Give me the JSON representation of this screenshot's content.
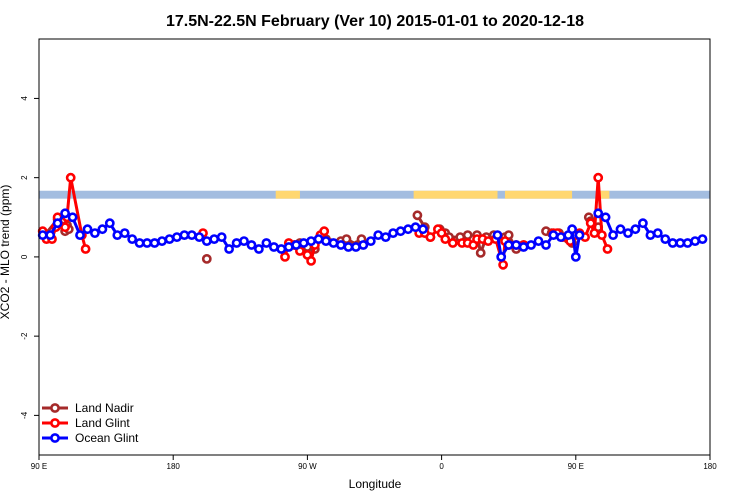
{
  "chart_data": {
    "type": "line",
    "title": "17.5N-22.5N February (Ver 10)   2015-01-01 to 2020-12-18",
    "xlabel": "Longitude",
    "ylabel": "XCO2 - MLO trend (ppm)",
    "xlim": [
      0,
      360
    ],
    "ylim": [
      -5,
      5.5
    ],
    "x_ticks": [
      {
        "value": 0,
        "label": "90 E"
      },
      {
        "value": 72,
        "label": "180"
      },
      {
        "value": 144,
        "label": "90 W"
      },
      {
        "value": 216,
        "label": "0"
      },
      {
        "value": 288,
        "label": "90 E"
      },
      {
        "value": 360,
        "label": "180"
      }
    ],
    "y_ticks": [
      {
        "value": -4,
        "label": "-4"
      },
      {
        "value": -2,
        "label": "-2"
      },
      {
        "value": 0,
        "label": "0"
      },
      {
        "value": 2,
        "label": "2"
      },
      {
        "value": 4,
        "label": "4"
      }
    ],
    "grid": false,
    "legend_position": "bottom-left",
    "land_strip": {
      "y_range": [
        1.47,
        1.67
      ],
      "ocean_color": "#a3bde0",
      "land_color": "#ffd770",
      "land_segments": [
        [
          127,
          140
        ],
        [
          201,
          246
        ],
        [
          250,
          286
        ],
        [
          301,
          306
        ]
      ]
    },
    "series": [
      {
        "name": "Land Nadir",
        "color": "#a52a2a",
        "segments": [
          [
            [
              3,
              0.55
            ],
            [
              10,
              0.95
            ],
            [
              14,
              0.65
            ],
            [
              15,
              0.8
            ],
            [
              16,
              0.7
            ]
          ],
          [
            [
              90,
              -0.05
            ]
          ],
          [
            [
              137,
              0.3
            ],
            [
              140,
              0.35
            ],
            [
              144,
              0.25
            ],
            [
              148,
              0.2
            ]
          ],
          [
            [
              154,
              0.45
            ],
            [
              162,
              0.4
            ],
            [
              165,
              0.45
            ],
            [
              171,
              0.3
            ],
            [
              173,
              0.45
            ]
          ],
          [
            [
              203,
              1.05
            ],
            [
              207,
              0.75
            ],
            [
              210,
              0.5
            ]
          ],
          [
            [
              215,
              0.7
            ],
            [
              218,
              0.6
            ],
            [
              220,
              0.5
            ],
            [
              226,
              0.5
            ],
            [
              230,
              0.55
            ]
          ],
          [
            [
              235,
              0.55
            ],
            [
              237,
              0.1
            ],
            [
              240,
              0.5
            ],
            [
              244,
              0.55
            ],
            [
              250,
              0.5
            ]
          ],
          [
            [
              252,
              0.55
            ],
            [
              256,
              0.2
            ],
            [
              260,
              0.3
            ]
          ],
          [
            [
              272,
              0.65
            ],
            [
              275,
              0.6
            ],
            [
              279,
              0.6
            ],
            [
              284,
              0.45
            ],
            [
              286,
              0.35
            ]
          ],
          [
            [
              295,
              1.0
            ],
            [
              296,
              0.9
            ],
            [
              300,
              0.75
            ]
          ]
        ]
      },
      {
        "name": "Land Glint",
        "color": "#ff0000",
        "segments": [
          [
            [
              2,
              0.65
            ],
            [
              4,
              0.45
            ],
            [
              7,
              0.45
            ],
            [
              9,
              0.75
            ],
            [
              10,
              1.0
            ],
            [
              14,
              0.75
            ],
            [
              15,
              1.0
            ],
            [
              17,
              2.0
            ],
            [
              23,
              0.55
            ],
            [
              25,
              0.2
            ]
          ],
          [
            [
              88,
              0.6
            ]
          ],
          [
            [
              132,
              0.0
            ],
            [
              134,
              0.35
            ],
            [
              137,
              0.3
            ],
            [
              140,
              0.15
            ],
            [
              144,
              0.05
            ],
            [
              146,
              -0.1
            ],
            [
              148,
              0.3
            ],
            [
              150,
              0.45
            ],
            [
              151,
              0.55
            ],
            [
              153,
              0.65
            ]
          ],
          [
            [
              204,
              0.6
            ],
            [
              207,
              0.6
            ],
            [
              210,
              0.5
            ],
            [
              214,
              0.7
            ],
            [
              216,
              0.6
            ],
            [
              218,
              0.45
            ],
            [
              222,
              0.35
            ],
            [
              227,
              0.35
            ],
            [
              230,
              0.35
            ],
            [
              233,
              0.3
            ],
            [
              235,
              0.45
            ],
            [
              238,
              0.45
            ],
            [
              241,
              0.4
            ],
            [
              245,
              0.45
            ],
            [
              249,
              -0.2
            ],
            [
              250,
              0.4
            ],
            [
              252,
              0.3
            ],
            [
              256,
              0.3
            ],
            [
              260,
              0.3
            ]
          ],
          [
            [
              276,
              0.6
            ],
            [
              278,
              0.6
            ],
            [
              281,
              0.5
            ],
            [
              285,
              0.4
            ],
            [
              288,
              0.55
            ],
            [
              290,
              0.6
            ],
            [
              293,
              0.5
            ],
            [
              296,
              0.85
            ],
            [
              298,
              0.6
            ],
            [
              300,
              2.0
            ],
            [
              302,
              0.55
            ],
            [
              305,
              0.2
            ]
          ]
        ]
      },
      {
        "name": "Ocean Glint",
        "color": "#0000ff",
        "segments": [
          [
            [
              2,
              0.55
            ],
            [
              6,
              0.55
            ],
            [
              10,
              0.85
            ],
            [
              14,
              1.1
            ],
            [
              18,
              1.0
            ],
            [
              22,
              0.55
            ],
            [
              26,
              0.7
            ],
            [
              30,
              0.6
            ],
            [
              34,
              0.7
            ],
            [
              38,
              0.85
            ],
            [
              42,
              0.55
            ],
            [
              46,
              0.6
            ],
            [
              50,
              0.45
            ],
            [
              54,
              0.35
            ],
            [
              58,
              0.35
            ],
            [
              62,
              0.35
            ],
            [
              66,
              0.4
            ],
            [
              70,
              0.45
            ],
            [
              74,
              0.5
            ],
            [
              78,
              0.55
            ],
            [
              82,
              0.55
            ],
            [
              86,
              0.5
            ],
            [
              90,
              0.4
            ],
            [
              94,
              0.45
            ],
            [
              98,
              0.5
            ],
            [
              102,
              0.2
            ],
            [
              106,
              0.35
            ],
            [
              110,
              0.4
            ],
            [
              114,
              0.3
            ],
            [
              118,
              0.2
            ],
            [
              122,
              0.35
            ],
            [
              126,
              0.25
            ],
            [
              130,
              0.2
            ],
            [
              134,
              0.25
            ],
            [
              138,
              0.3
            ],
            [
              142,
              0.35
            ],
            [
              146,
              0.4
            ],
            [
              150,
              0.45
            ],
            [
              154,
              0.4
            ],
            [
              158,
              0.35
            ],
            [
              162,
              0.3
            ],
            [
              166,
              0.25
            ],
            [
              170,
              0.25
            ],
            [
              174,
              0.3
            ],
            [
              178,
              0.4
            ],
            [
              182,
              0.55
            ],
            [
              186,
              0.5
            ],
            [
              190,
              0.6
            ],
            [
              194,
              0.65
            ],
            [
              198,
              0.7
            ],
            [
              202,
              0.75
            ],
            [
              206,
              0.7
            ]
          ],
          [
            [
              246,
              0.55
            ],
            [
              248,
              0.0
            ],
            [
              252,
              0.3
            ],
            [
              256,
              0.3
            ],
            [
              260,
              0.25
            ],
            [
              264,
              0.3
            ],
            [
              268,
              0.4
            ],
            [
              272,
              0.3
            ],
            [
              276,
              0.55
            ],
            [
              280,
              0.5
            ],
            [
              284,
              0.55
            ],
            [
              286,
              0.7
            ],
            [
              288,
              0.0
            ],
            [
              290,
              0.55
            ]
          ],
          [
            [
              300,
              1.1
            ],
            [
              304,
              1.0
            ],
            [
              308,
              0.55
            ],
            [
              312,
              0.7
            ],
            [
              316,
              0.6
            ],
            [
              320,
              0.7
            ],
            [
              324,
              0.85
            ],
            [
              328,
              0.55
            ],
            [
              332,
              0.6
            ],
            [
              336,
              0.45
            ],
            [
              340,
              0.35
            ],
            [
              344,
              0.35
            ],
            [
              348,
              0.35
            ],
            [
              352,
              0.4
            ],
            [
              356,
              0.45
            ]
          ]
        ]
      }
    ]
  }
}
